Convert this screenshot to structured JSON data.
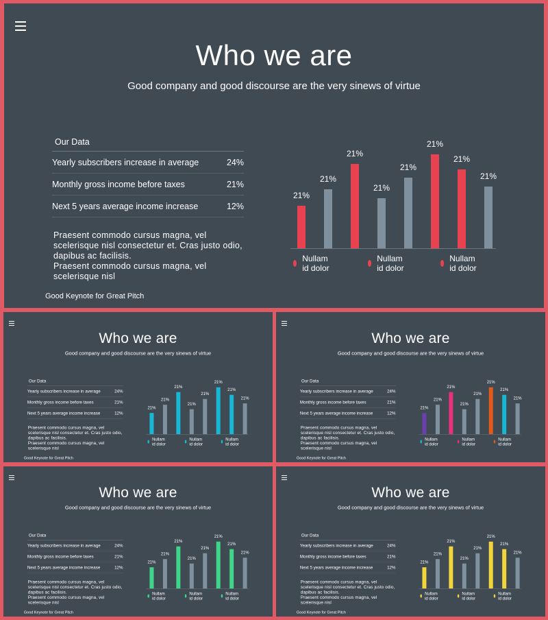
{
  "slide": {
    "title": "Who we are",
    "subtitle": "Good company and good discourse are the very sinews of virtue",
    "table_head": "Our Data",
    "rows": [
      {
        "label": "Yearly subscribers increase in average",
        "value": "24%"
      },
      {
        "label": "Monthly gross income before taxes",
        "value": "21%"
      },
      {
        "label": "Next 5 years average income increase",
        "value": "12%"
      }
    ],
    "paragraph": [
      "Praesent commodo cursus magna, vel scelerisque nisl consectetur et. Cras justo odio, dapibus ac facilisis.",
      "Praesent commodo cursus magna, vel scelerisque nisl"
    ],
    "footer": "Good Keynote for Great Pitch",
    "legend": [
      "Nullam id dolor",
      "Nullam id dolor",
      "Nullam id dolor"
    ],
    "menu_icon": "hamburger-menu-icon"
  },
  "chart_data": [
    {
      "type": "bar",
      "variant": "main",
      "values": [
        21,
        21,
        21,
        21,
        21,
        21,
        21,
        21
      ],
      "bar_heights_relative": [
        0.45,
        0.63,
        0.9,
        0.53,
        0.75,
        1.0,
        0.84,
        0.66
      ],
      "labels": [
        "21%",
        "21%",
        "21%",
        "21%",
        "21%",
        "21%",
        "21%",
        "21%"
      ],
      "colors": [
        "#e8414f",
        "#7f919e",
        "#e8414f",
        "#7f919e",
        "#7f919e",
        "#e8414f",
        "#e8414f",
        "#7f919e"
      ],
      "legend_colors": [
        "#e8414f",
        "#e8414f",
        "#e8414f"
      ]
    },
    {
      "type": "bar",
      "variant": "cyan",
      "values": [
        21,
        21,
        21,
        21,
        21,
        21,
        21,
        21
      ],
      "bar_heights_relative": [
        0.45,
        0.63,
        0.9,
        0.53,
        0.75,
        1.0,
        0.84,
        0.66
      ],
      "labels": [
        "21%",
        "21%",
        "21%",
        "21%",
        "21%",
        "21%",
        "21%",
        "21%"
      ],
      "colors": [
        "#17b8d6",
        "#7f919e",
        "#17b8d6",
        "#7f919e",
        "#7f919e",
        "#17b8d6",
        "#17b8d6",
        "#7f919e"
      ],
      "legend_colors": [
        "#17b8d6",
        "#17b8d6",
        "#17b8d6"
      ]
    },
    {
      "type": "bar",
      "variant": "multi",
      "values": [
        21,
        21,
        21,
        21,
        21,
        21,
        21,
        21
      ],
      "bar_heights_relative": [
        0.45,
        0.63,
        0.9,
        0.53,
        0.75,
        1.0,
        0.84,
        0.66
      ],
      "labels": [
        "21%",
        "21%",
        "21%",
        "21%",
        "21%",
        "21%",
        "21%",
        "21%"
      ],
      "colors": [
        "#6a3fb0",
        "#7f919e",
        "#e8307c",
        "#7f919e",
        "#7f919e",
        "#e35a1c",
        "#17b8d6",
        "#7f919e"
      ],
      "legend_colors": [
        "#17b8d6",
        "#e8307c",
        "#e35a1c"
      ]
    },
    {
      "type": "bar",
      "variant": "green",
      "values": [
        21,
        21,
        21,
        21,
        21,
        21,
        21,
        21
      ],
      "bar_heights_relative": [
        0.45,
        0.63,
        0.9,
        0.53,
        0.75,
        1.0,
        0.84,
        0.66
      ],
      "labels": [
        "21%",
        "21%",
        "21%",
        "21%",
        "21%",
        "21%",
        "21%",
        "21%"
      ],
      "colors": [
        "#3fd68a",
        "#7f919e",
        "#3fd68a",
        "#7f919e",
        "#7f919e",
        "#3fd68a",
        "#3fd68a",
        "#7f919e"
      ],
      "legend_colors": [
        "#3fd68a",
        "#3fd68a",
        "#3fd68a"
      ]
    },
    {
      "type": "bar",
      "variant": "yellow",
      "values": [
        21,
        21,
        21,
        21,
        21,
        21,
        21,
        21
      ],
      "bar_heights_relative": [
        0.45,
        0.63,
        0.9,
        0.53,
        0.75,
        1.0,
        0.84,
        0.66
      ],
      "labels": [
        "21%",
        "21%",
        "21%",
        "21%",
        "21%",
        "21%",
        "21%",
        "21%"
      ],
      "colors": [
        "#f2d53a",
        "#7f919e",
        "#f2d53a",
        "#7f919e",
        "#7f919e",
        "#f2d53a",
        "#f2d53a",
        "#7f919e"
      ],
      "legend_colors": [
        "#f2d53a",
        "#f2d53a",
        "#f2d53a"
      ]
    }
  ]
}
